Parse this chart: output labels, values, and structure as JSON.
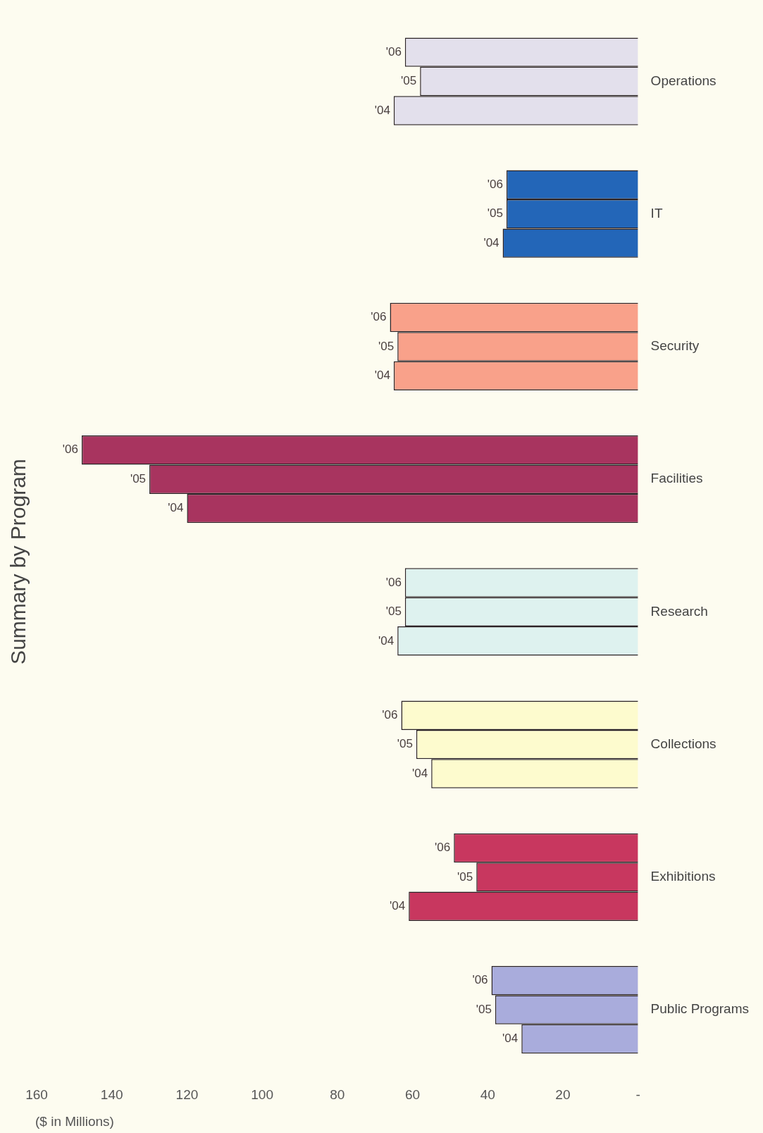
{
  "chart_data": {
    "type": "bar",
    "orientation": "horizontal",
    "title": "Summary by Program",
    "xlabel": "($ in Millions)",
    "categories": [
      "Operations",
      "IT",
      "Security",
      "Facilities",
      "Research",
      "Collections",
      "Exhibitions",
      "Public Programs"
    ],
    "series": [
      {
        "name": "'06",
        "colors": [
          "#e3e0ec",
          "#2366b8",
          "#f9a18a",
          "#a8345f",
          "#def2ef",
          "#fdfbce",
          "#c8375f",
          "#a9acdc"
        ],
        "values": [
          62,
          35,
          66,
          148,
          62,
          63,
          49,
          39
        ]
      },
      {
        "name": "'05",
        "colors": [
          "#e3e0ec",
          "#2366b8",
          "#f9a18a",
          "#a8345f",
          "#def2ef",
          "#fdfbce",
          "#c8375f",
          "#a9acdc"
        ],
        "values": [
          58,
          35,
          64,
          130,
          62,
          59,
          43,
          38
        ]
      },
      {
        "name": "'04",
        "colors": [
          "#e3e0ec",
          "#2366b8",
          "#f9a18a",
          "#a8345f",
          "#def2ef",
          "#fdfbce",
          "#c8375f",
          "#a9acdc"
        ],
        "values": [
          65,
          36,
          65,
          120,
          64,
          55,
          61,
          31
        ]
      }
    ],
    "xlim": [
      160,
      0
    ],
    "xticks": [
      {
        "value": 0,
        "label": "-"
      },
      20,
      40,
      60,
      80,
      100,
      120,
      140,
      160
    ]
  }
}
